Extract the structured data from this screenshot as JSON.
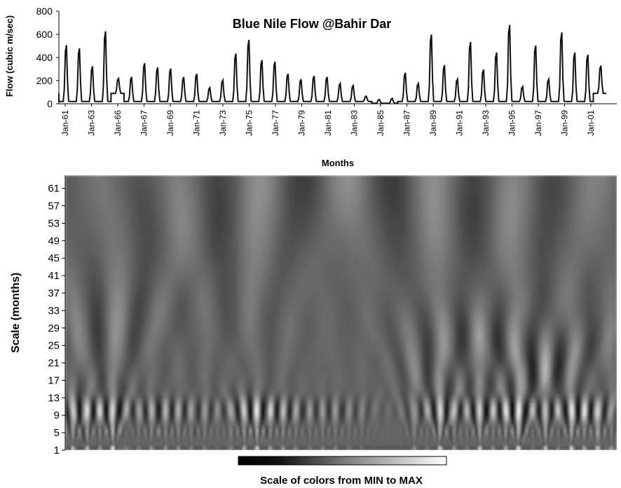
{
  "chart_data": [
    {
      "type": "line",
      "title": "Blue Nile Flow @Bahir Dar",
      "xlabel": "Months",
      "ylabel": "Flow (cubic m/sec)",
      "ylim": [
        0,
        800
      ],
      "yticks": [
        0,
        200,
        400,
        600,
        800
      ],
      "xlim": [
        1961,
        2003.8
      ],
      "xticks": [
        "Jan-61",
        "Jan-63",
        "Jan-66",
        "Jan-67",
        "Jan-69",
        "Jan-71",
        "Jan-73",
        "Jan-75",
        "Jan-77",
        "Jan-79",
        "Jan-81",
        "Jan-83",
        "Jan-85",
        "Jan-87",
        "Jan-89",
        "Jan-91",
        "Jan-93",
        "Jan-95",
        "Jan-97",
        "Jan-99",
        "Jan-01"
      ],
      "grid": false,
      "series": [
        {
          "x": [
            1961,
            1962,
            1963,
            1964,
            1965,
            1966,
            1967,
            1968,
            1969,
            1970,
            1971,
            1972,
            1973,
            1974,
            1975,
            1976,
            1977,
            1978,
            1979,
            1980,
            1981,
            1982,
            1983,
            1984,
            1985,
            1986,
            1987,
            1988,
            1989,
            1990,
            1991,
            1992,
            1993,
            1994,
            1995,
            1996,
            1997,
            1998,
            1999,
            2000,
            2001,
            2002
          ],
          "annual_peak": [
            550,
            520,
            350,
            680,
            230,
            250,
            380,
            340,
            330,
            250,
            280,
            150,
            220,
            470,
            600,
            410,
            395,
            280,
            230,
            260,
            250,
            190,
            170,
            70,
            40,
            50,
            290,
            190,
            650,
            360,
            230,
            580,
            320,
            480,
            740,
            160,
            545,
            230,
            670,
            480,
            460,
            350
          ],
          "annual_min": [
            20,
            20,
            20,
            20,
            90,
            20,
            20,
            20,
            20,
            20,
            20,
            20,
            20,
            20,
            20,
            20,
            20,
            20,
            20,
            20,
            20,
            20,
            20,
            20,
            5,
            5,
            20,
            20,
            20,
            20,
            20,
            20,
            20,
            20,
            20,
            20,
            20,
            20,
            20,
            20,
            20,
            90
          ]
        }
      ]
    },
    {
      "type": "heatmap",
      "ylabel": "Scale (months)",
      "yticks": [
        1,
        5,
        9,
        13,
        17,
        21,
        25,
        29,
        33,
        37,
        41,
        45,
        49,
        53,
        57,
        61
      ],
      "ylim": [
        1,
        64
      ],
      "colorbar_label": "Scale of colors from MIN to MAX",
      "colormap": [
        "#000000",
        "#ffffff"
      ]
    }
  ]
}
